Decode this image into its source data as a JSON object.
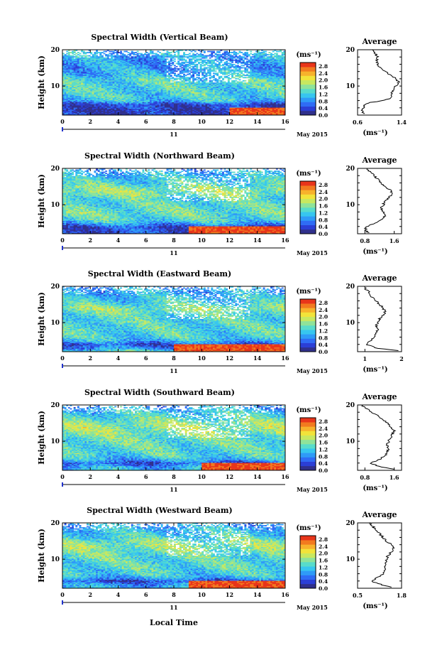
{
  "figure": {
    "date_label": "May 2015",
    "day_label": "11",
    "xlabel": "Local Time",
    "avg_title": "Average",
    "ylabel": "Height (km)",
    "unit_label": "(ms⁻¹)",
    "x_ticks": [
      "0",
      "2",
      "4",
      "6",
      "8",
      "10",
      "12",
      "14",
      "16"
    ],
    "y_ticks": [
      "10",
      "20"
    ],
    "colorbar_ticks": [
      "2.8",
      "2.4",
      "2.0",
      "1.6",
      "1.2",
      "0.8",
      "0.4",
      "0.0"
    ],
    "colormap": [
      "#30308c",
      "#2b3fd6",
      "#2f6cf5",
      "#2f9bf7",
      "#37c6ef",
      "#58dccb",
      "#8fe39a",
      "#c8e860",
      "#f2e33a",
      "#f7b22c",
      "#f27a1f",
      "#e8351a"
    ]
  },
  "chart_data": [
    {
      "type": "heatmap",
      "title": "Spectral Width (Vertical Beam)",
      "xlim": [
        0,
        16
      ],
      "ylim": [
        2,
        20
      ],
      "zlim": [
        0,
        3.0
      ],
      "base_profile": [
        [
          2,
          0.3
        ],
        [
          3,
          0.25
        ],
        [
          4,
          0.35
        ],
        [
          5,
          0.4
        ],
        [
          6,
          1.1
        ],
        [
          7,
          1.2
        ],
        [
          8,
          1.25
        ],
        [
          9,
          1.25
        ],
        [
          10,
          1.3
        ],
        [
          11,
          1.32
        ],
        [
          12,
          1.28
        ],
        [
          13,
          1.05
        ],
        [
          14,
          1.0
        ],
        [
          15,
          0.9
        ],
        [
          16,
          0.95
        ],
        [
          17,
          0.9
        ],
        [
          18,
          0.95
        ],
        [
          19,
          1.0
        ],
        [
          20,
          1.0
        ]
      ],
      "average": {
        "xlim": [
          0.6,
          1.4
        ],
        "x_ticks": [
          "0.6",
          "1.4"
        ],
        "x_tick_values": [
          0.6,
          1.4
        ],
        "profile": [
          [
            2.3,
            0.7
          ],
          [
            3,
            0.69
          ],
          [
            4,
            0.7
          ],
          [
            5,
            0.72
          ],
          [
            5.5,
            0.85
          ],
          [
            6,
            1.05
          ],
          [
            6.5,
            1.18
          ],
          [
            7,
            1.2
          ],
          [
            8,
            1.22
          ],
          [
            9,
            1.25
          ],
          [
            10,
            1.3
          ],
          [
            11,
            1.35
          ],
          [
            12,
            1.3
          ],
          [
            13,
            1.2
          ],
          [
            14,
            1.1
          ],
          [
            15,
            1.0
          ],
          [
            16,
            0.97
          ],
          [
            17,
            0.95
          ],
          [
            18,
            0.96
          ],
          [
            19,
            0.92
          ],
          [
            20,
            0.88
          ]
        ]
      },
      "strong_low_after_hours": 12
    },
    {
      "type": "heatmap",
      "title": "Spectral Width (Northward Beam)",
      "xlim": [
        0,
        16
      ],
      "ylim": [
        2,
        20
      ],
      "zlim": [
        0,
        3.0
      ],
      "base_profile": [
        [
          2,
          0.4
        ],
        [
          3,
          0.5
        ],
        [
          4,
          0.45
        ],
        [
          5,
          1.0
        ],
        [
          6,
          1.3
        ],
        [
          7,
          1.4
        ],
        [
          8,
          1.45
        ],
        [
          9,
          1.4
        ],
        [
          10,
          1.35
        ],
        [
          11,
          1.3
        ],
        [
          12,
          1.4
        ],
        [
          13,
          1.6
        ],
        [
          14,
          1.7
        ],
        [
          15,
          1.5
        ],
        [
          16,
          1.3
        ],
        [
          17,
          1.2
        ],
        [
          18,
          1.1
        ],
        [
          19,
          1.0
        ],
        [
          20,
          0.9
        ]
      ],
      "average": {
        "xlim": [
          0.6,
          1.8
        ],
        "x_ticks": [
          "0.8",
          "1.6"
        ],
        "x_tick_values": [
          0.8,
          1.6
        ],
        "profile": [
          [
            2.3,
            0.9
          ],
          [
            3,
            0.8
          ],
          [
            4,
            0.85
          ],
          [
            5,
            1.1
          ],
          [
            6,
            1.3
          ],
          [
            7,
            1.35
          ],
          [
            8,
            1.3
          ],
          [
            9,
            1.25
          ],
          [
            10,
            1.3
          ],
          [
            11,
            1.35
          ],
          [
            12,
            1.45
          ],
          [
            13,
            1.55
          ],
          [
            14,
            1.5
          ],
          [
            15,
            1.35
          ],
          [
            16,
            1.25
          ],
          [
            17,
            1.15
          ],
          [
            18,
            1.05
          ],
          [
            19,
            0.95
          ],
          [
            20,
            0.85
          ]
        ]
      },
      "strong_low_after_hours": 9
    },
    {
      "type": "heatmap",
      "title": "Spectral Width (Eastward Beam)",
      "xlim": [
        0,
        16
      ],
      "ylim": [
        2,
        20
      ],
      "zlim": [
        0,
        3.0
      ],
      "base_profile": [
        [
          2,
          1.5
        ],
        [
          3,
          0.8
        ],
        [
          4,
          0.5
        ],
        [
          5,
          1.0
        ],
        [
          6,
          1.2
        ],
        [
          7,
          1.3
        ],
        [
          8,
          1.3
        ],
        [
          9,
          1.3
        ],
        [
          10,
          1.35
        ],
        [
          11,
          1.3
        ],
        [
          12,
          1.35
        ],
        [
          13,
          1.5
        ],
        [
          14,
          1.6
        ],
        [
          15,
          1.4
        ],
        [
          16,
          1.2
        ],
        [
          17,
          1.1
        ],
        [
          18,
          1.0
        ],
        [
          19,
          1.0
        ],
        [
          20,
          0.9
        ]
      ],
      "average": {
        "xlim": [
          0.8,
          2.0
        ],
        "x_ticks": [
          "1",
          "2"
        ],
        "x_tick_values": [
          1,
          2
        ],
        "profile": [
          [
            2.3,
            1.9
          ],
          [
            3,
            1.3
          ],
          [
            4,
            1.05
          ],
          [
            5,
            1.15
          ],
          [
            6,
            1.25
          ],
          [
            7,
            1.3
          ],
          [
            8,
            1.35
          ],
          [
            9,
            1.3
          ],
          [
            10,
            1.35
          ],
          [
            11,
            1.4
          ],
          [
            12,
            1.5
          ],
          [
            13,
            1.55
          ],
          [
            14,
            1.5
          ],
          [
            15,
            1.4
          ],
          [
            16,
            1.3
          ],
          [
            17,
            1.2
          ],
          [
            18,
            1.15
          ],
          [
            19,
            1.05
          ],
          [
            20,
            0.95
          ]
        ]
      },
      "strong_low_after_hours": 8
    },
    {
      "type": "heatmap",
      "title": "Spectral Width (Southward Beam)",
      "xlim": [
        0,
        16
      ],
      "ylim": [
        2,
        20
      ],
      "zlim": [
        0,
        3.0
      ],
      "base_profile": [
        [
          2,
          1.2
        ],
        [
          3,
          0.9
        ],
        [
          4,
          0.5
        ],
        [
          5,
          1.0
        ],
        [
          6,
          1.25
        ],
        [
          7,
          1.3
        ],
        [
          8,
          1.35
        ],
        [
          9,
          1.4
        ],
        [
          10,
          1.4
        ],
        [
          11,
          1.45
        ],
        [
          12,
          1.55
        ],
        [
          13,
          1.65
        ],
        [
          14,
          1.7
        ],
        [
          15,
          1.6
        ],
        [
          16,
          1.45
        ],
        [
          17,
          1.3
        ],
        [
          18,
          1.2
        ],
        [
          19,
          1.0
        ],
        [
          20,
          0.9
        ]
      ],
      "average": {
        "xlim": [
          0.6,
          1.8
        ],
        "x_ticks": [
          "0.8",
          "1.6"
        ],
        "x_tick_values": [
          0.8,
          1.6
        ],
        "profile": [
          [
            2.3,
            1.6
          ],
          [
            3,
            1.2
          ],
          [
            4,
            0.95
          ],
          [
            5,
            1.2
          ],
          [
            6,
            1.35
          ],
          [
            7,
            1.4
          ],
          [
            8,
            1.45
          ],
          [
            9,
            1.4
          ],
          [
            10,
            1.45
          ],
          [
            11,
            1.5
          ],
          [
            12,
            1.55
          ],
          [
            13,
            1.6
          ],
          [
            14,
            1.5
          ],
          [
            15,
            1.4
          ],
          [
            16,
            1.3
          ],
          [
            17,
            1.15
          ],
          [
            18,
            1.0
          ],
          [
            19,
            0.85
          ],
          [
            20,
            0.7
          ]
        ]
      },
      "strong_low_after_hours": 10
    },
    {
      "type": "heatmap",
      "title": "Spectral Width (Westward Beam)",
      "xlim": [
        0,
        16
      ],
      "ylim": [
        2,
        20
      ],
      "zlim": [
        0,
        3.0
      ],
      "base_profile": [
        [
          2,
          1.0
        ],
        [
          3,
          0.9
        ],
        [
          4,
          0.45
        ],
        [
          5,
          1.0
        ],
        [
          6,
          1.2
        ],
        [
          7,
          1.3
        ],
        [
          8,
          1.3
        ],
        [
          9,
          1.35
        ],
        [
          10,
          1.35
        ],
        [
          11,
          1.4
        ],
        [
          12,
          1.5
        ],
        [
          13,
          1.6
        ],
        [
          14,
          1.65
        ],
        [
          15,
          1.5
        ],
        [
          16,
          1.3
        ],
        [
          17,
          1.2
        ],
        [
          18,
          1.1
        ],
        [
          19,
          1.0
        ],
        [
          20,
          0.9
        ]
      ],
      "average": {
        "xlim": [
          0.5,
          1.8
        ],
        "x_ticks": [
          "0.5",
          "1.8"
        ],
        "x_tick_values": [
          0.5,
          1.8
        ],
        "profile": [
          [
            2.3,
            1.5
          ],
          [
            3,
            1.2
          ],
          [
            4,
            0.9
          ],
          [
            5,
            1.1
          ],
          [
            6,
            1.25
          ],
          [
            7,
            1.3
          ],
          [
            8,
            1.3
          ],
          [
            9,
            1.35
          ],
          [
            10,
            1.35
          ],
          [
            11,
            1.4
          ],
          [
            12,
            1.5
          ],
          [
            13,
            1.55
          ],
          [
            14,
            1.5
          ],
          [
            15,
            1.35
          ],
          [
            16,
            1.25
          ],
          [
            17,
            1.15
          ],
          [
            18,
            1.05
          ],
          [
            19,
            0.95
          ],
          [
            20,
            0.85
          ]
        ]
      },
      "strong_low_after_hours": 9
    }
  ]
}
